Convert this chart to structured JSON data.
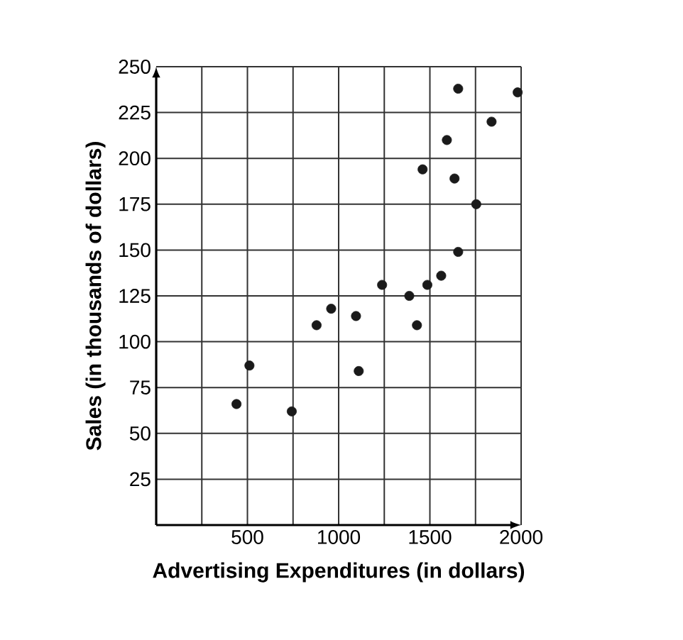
{
  "chart_data": {
    "type": "scatter",
    "xlabel": "Advertising Expenditures (in dollars)",
    "ylabel": "Sales (in thousands of dollars)",
    "xlim": [
      0,
      2000
    ],
    "ylim": [
      0,
      250
    ],
    "xticks": [
      {
        "value": 250,
        "label": null
      },
      500,
      {
        "value": 750,
        "label": null
      },
      1000,
      {
        "value": 1250,
        "label": null
      },
      1500,
      {
        "value": 1750,
        "label": null
      },
      2000
    ],
    "yticks": [
      25,
      50,
      75,
      100,
      125,
      150,
      175,
      200,
      225,
      250
    ],
    "grid": true,
    "series": [
      {
        "color": "#1a1a1a",
        "x": [
          440,
          511,
          743,
          879,
          959,
          1095,
          1110,
          1238,
          1387,
          1429,
          1460,
          1486,
          1562,
          1593,
          1635,
          1655,
          1655,
          1754,
          1838,
          1981
        ],
        "values": [
          66,
          87,
          62,
          109,
          118,
          114,
          84,
          131,
          125,
          109,
          194,
          131,
          136,
          210,
          189,
          149,
          238,
          175,
          220,
          236
        ]
      }
    ]
  }
}
